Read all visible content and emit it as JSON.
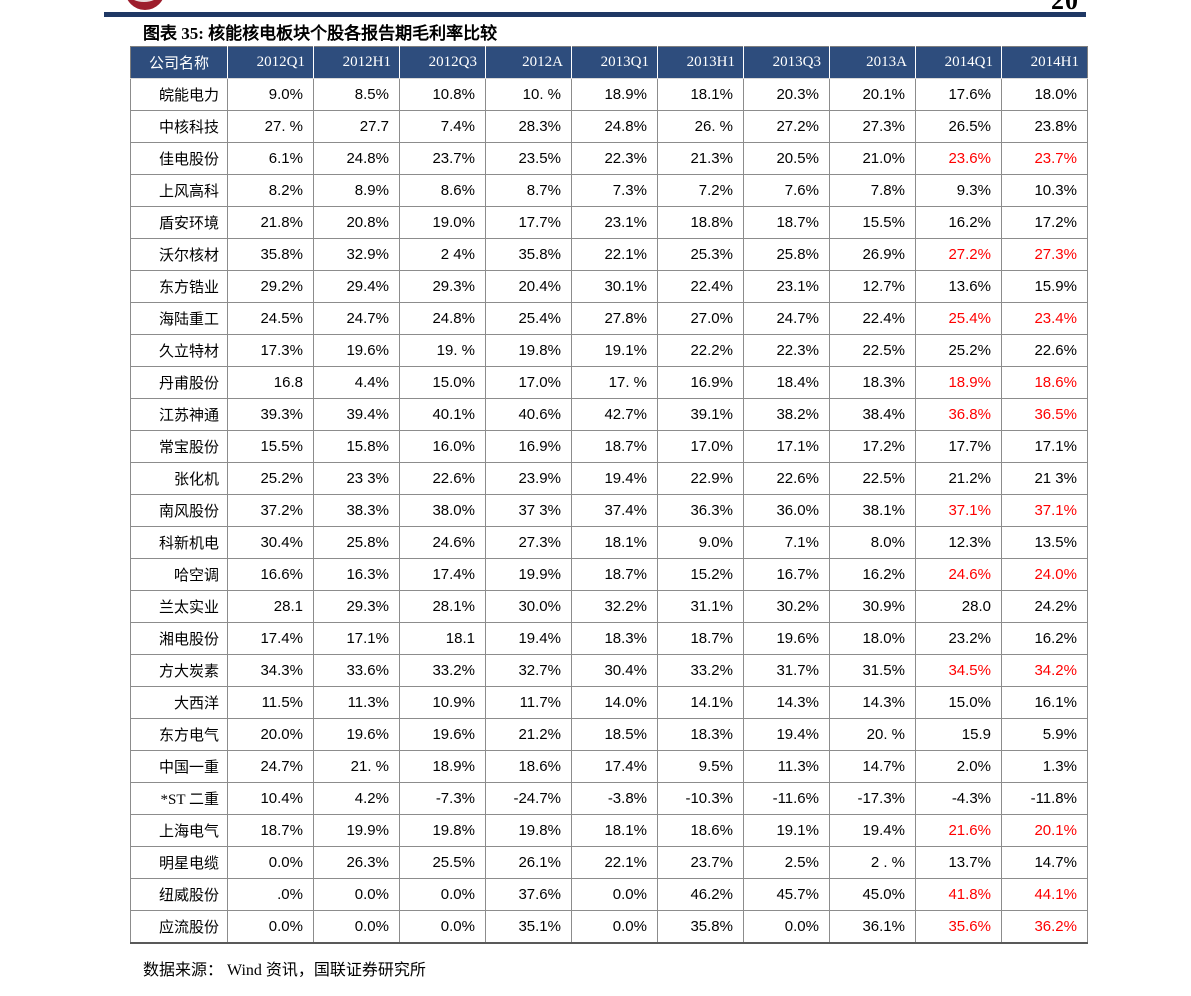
{
  "page": {
    "page_number": "20",
    "title": "图表 35: 核能核电板块个股各报告期毛利率比较",
    "source_note": "数据来源： Wind 资讯，国联证券研究所"
  },
  "colors": {
    "header_bg": "#2e4d7d",
    "header_text": "#ffffff",
    "highlight_red": "#ff0000",
    "rule_navy": "#1f3864",
    "logo_red": "#9d1d2c",
    "border_gray": "#8c8c8c"
  },
  "table": {
    "name_header": "公司名称",
    "period_headers": [
      "2012Q1",
      "2012H1",
      "2012Q3",
      "2012A",
      "2013Q1",
      "2013H1",
      "2013Q3",
      "2013A",
      "2014Q1",
      "2014H1"
    ],
    "rows": [
      {
        "name": "皖能电力",
        "values": [
          "9.0%",
          "8.5%",
          "10.8%",
          "10. %",
          "18.9%",
          "18.1%",
          "20.3%",
          "20.1%",
          "17.6%",
          "18.0%"
        ],
        "red": []
      },
      {
        "name": "中核科技",
        "values": [
          "27. %",
          "27.7",
          "7.4%",
          "28.3%",
          "24.8%",
          "26. %",
          "27.2%",
          "27.3%",
          "26.5%",
          "23.8%"
        ],
        "red": []
      },
      {
        "name": "佳电股份",
        "values": [
          "6.1%",
          "24.8%",
          "23.7%",
          "23.5%",
          "22.3%",
          "21.3%",
          "20.5%",
          "21.0%",
          "23.6%",
          "23.7%"
        ],
        "red": [
          8,
          9
        ]
      },
      {
        "name": "上风高科",
        "values": [
          "8.2%",
          "8.9%",
          "8.6%",
          "8.7%",
          "7.3%",
          "7.2%",
          "7.6%",
          "7.8%",
          "9.3%",
          "10.3%"
        ],
        "red": []
      },
      {
        "name": "盾安环境",
        "values": [
          "21.8%",
          "20.8%",
          "19.0%",
          "17.7%",
          "23.1%",
          "18.8%",
          "18.7%",
          "15.5%",
          "16.2%",
          "17.2%"
        ],
        "red": []
      },
      {
        "name": "沃尔核材",
        "values": [
          "35.8%",
          "32.9%",
          "2 4%",
          "35.8%",
          "22.1%",
          "25.3%",
          "25.8%",
          "26.9%",
          "27.2%",
          "27.3%"
        ],
        "red": [
          8,
          9
        ]
      },
      {
        "name": "东方锆业",
        "values": [
          "29.2%",
          "29.4%",
          "29.3%",
          "20.4%",
          "30.1%",
          "22.4%",
          "23.1%",
          "12.7%",
          "13.6%",
          "15.9%"
        ],
        "red": []
      },
      {
        "name": "海陆重工",
        "values": [
          "24.5%",
          "24.7%",
          "24.8%",
          "25.4%",
          "27.8%",
          "27.0%",
          "24.7%",
          "22.4%",
          "25.4%",
          "23.4%"
        ],
        "red": [
          8,
          9
        ]
      },
      {
        "name": "久立特材",
        "values": [
          "17.3%",
          "19.6%",
          "19. %",
          "19.8%",
          "19.1%",
          "22.2%",
          "22.3%",
          "22.5%",
          "25.2%",
          "22.6%"
        ],
        "red": []
      },
      {
        "name": "丹甫股份",
        "values": [
          "16.8",
          "4.4%",
          "15.0%",
          "17.0%",
          "17. %",
          "16.9%",
          "18.4%",
          "18.3%",
          "18.9%",
          "18.6%"
        ],
        "red": [
          8,
          9
        ]
      },
      {
        "name": "江苏神通",
        "values": [
          "39.3%",
          "39.4%",
          "40.1%",
          "40.6%",
          "42.7%",
          "39.1%",
          "38.2%",
          "38.4%",
          "36.8%",
          "36.5%"
        ],
        "red": [
          8,
          9
        ]
      },
      {
        "name": "常宝股份",
        "values": [
          "15.5%",
          "15.8%",
          "16.0%",
          "16.9%",
          "18.7%",
          "17.0%",
          "17.1%",
          "17.2%",
          "17.7%",
          "17.1%"
        ],
        "red": []
      },
      {
        "name": "张化机",
        "values": [
          "25.2%",
          "23 3%",
          "22.6%",
          "23.9%",
          "19.4%",
          "22.9%",
          "22.6%",
          "22.5%",
          "21.2%",
          "21 3%"
        ],
        "red": []
      },
      {
        "name": "南风股份",
        "values": [
          "37.2%",
          "38.3%",
          "38.0%",
          "37 3%",
          "37.4%",
          "36.3%",
          "36.0%",
          "38.1%",
          "37.1%",
          "37.1%"
        ],
        "red": [
          8,
          9
        ]
      },
      {
        "name": "科新机电",
        "values": [
          "30.4%",
          "25.8%",
          "24.6%",
          "27.3%",
          "18.1%",
          "9.0%",
          "7.1%",
          "8.0%",
          "12.3%",
          "13.5%"
        ],
        "red": []
      },
      {
        "name": "哈空调",
        "values": [
          "16.6%",
          "16.3%",
          "17.4%",
          "19.9%",
          "18.7%",
          "15.2%",
          "16.7%",
          "16.2%",
          "24.6%",
          "24.0%"
        ],
        "red": [
          8,
          9
        ]
      },
      {
        "name": "兰太实业",
        "values": [
          "28.1",
          "29.3%",
          "28.1%",
          "30.0%",
          "32.2%",
          "31.1%",
          "30.2%",
          "30.9%",
          "28.0",
          "24.2%"
        ],
        "red": []
      },
      {
        "name": "湘电股份",
        "values": [
          "17.4%",
          "17.1%",
          "18.1",
          "19.4%",
          "18.3%",
          "18.7%",
          "19.6%",
          "18.0%",
          "23.2%",
          "16.2%"
        ],
        "red": []
      },
      {
        "name": "方大炭素",
        "values": [
          "34.3%",
          "33.6%",
          "33.2%",
          "32.7%",
          "30.4%",
          "33.2%",
          "31.7%",
          "31.5%",
          "34.5%",
          "34.2%"
        ],
        "red": [
          8,
          9
        ]
      },
      {
        "name": "大西洋",
        "values": [
          "11.5%",
          "11.3%",
          "10.9%",
          "11.7%",
          "14.0%",
          "14.1%",
          "14.3%",
          "14.3%",
          "15.0%",
          "16.1%"
        ],
        "red": []
      },
      {
        "name": "东方电气",
        "values": [
          "20.0%",
          "19.6%",
          "19.6%",
          "21.2%",
          "18.5%",
          "18.3%",
          "19.4%",
          "20. %",
          "15.9",
          "5.9%"
        ],
        "red": []
      },
      {
        "name": "中国一重",
        "values": [
          "24.7%",
          "21. %",
          "18.9%",
          "18.6%",
          "17.4%",
          "9.5%",
          "11.3%",
          "14.7%",
          "2.0%",
          "1.3%"
        ],
        "red": []
      },
      {
        "name": "*ST 二重",
        "values": [
          "10.4%",
          "4.2%",
          "-7.3%",
          "-24.7%",
          "-3.8%",
          "-10.3%",
          "-11.6%",
          "-17.3%",
          "-4.3%",
          "-11.8%"
        ],
        "red": []
      },
      {
        "name": "上海电气",
        "values": [
          "18.7%",
          "19.9%",
          "19.8%",
          "19.8%",
          "18.1%",
          "18.6%",
          "19.1%",
          "19.4%",
          "21.6%",
          "20.1%"
        ],
        "red": [
          8,
          9
        ]
      },
      {
        "name": "明星电缆",
        "values": [
          "0.0%",
          "26.3%",
          "25.5%",
          "26.1%",
          "22.1%",
          "23.7%",
          "2.5%",
          "2 . %",
          "13.7%",
          "14.7%"
        ],
        "red": []
      },
      {
        "name": "纽威股份",
        "values": [
          ".0%",
          "0.0%",
          "0.0%",
          "37.6%",
          "0.0%",
          "46.2%",
          "45.7%",
          "45.0%",
          "41.8%",
          "44.1%"
        ],
        "red": [
          8,
          9
        ]
      },
      {
        "name": "应流股份",
        "values": [
          "0.0%",
          "0.0%",
          "0.0%",
          "35.1%",
          "0.0%",
          "35.8%",
          "0.0%",
          "36.1%",
          "35.6%",
          "36.2%"
        ],
        "red": [
          8,
          9
        ]
      }
    ]
  }
}
